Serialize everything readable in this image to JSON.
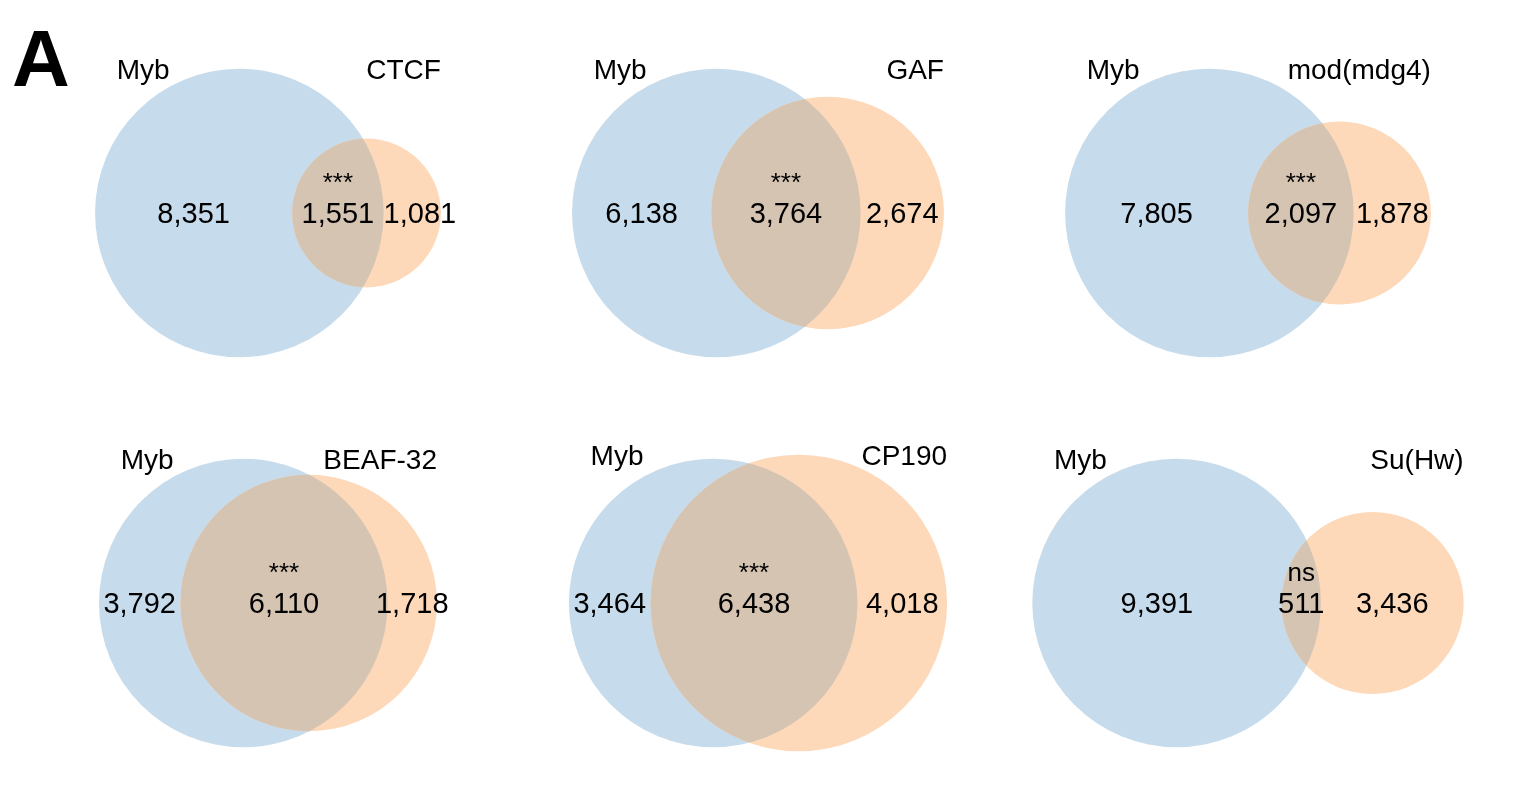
{
  "chart_data": [
    {
      "type": "other",
      "title": "A",
      "categories": [
        "Myb",
        null,
        "CTCF"
      ],
      "values": [
        8351,
        1551,
        1081
      ],
      "value_labels": [
        "8,351",
        "1,551",
        "1,081"
      ],
      "colors": [
        "#c6dbeb",
        "#d6c4b3",
        "#fdd9ba"
      ],
      "annotations": [
        "***"
      ]
    },
    {
      "type": "other",
      "categories": [
        "Myb",
        null,
        "GAF"
      ],
      "values": [
        6138,
        3764,
        2674
      ],
      "value_labels": [
        "6,138",
        "3,764",
        "2,674"
      ],
      "colors": [
        "#c6dbeb",
        "#d6c4b3",
        "#fdd9ba"
      ],
      "annotations": [
        "***"
      ]
    },
    {
      "type": "other",
      "categories": [
        "Myb",
        null,
        "mod(mdg4)"
      ],
      "values": [
        7805,
        2097,
        1878
      ],
      "value_labels": [
        "7,805",
        "2,097",
        "1,878"
      ],
      "colors": [
        "#c6dbeb",
        "#d6c4b3",
        "#fdd9ba"
      ],
      "annotations": [
        "***"
      ]
    },
    {
      "type": "other",
      "categories": [
        "Myb",
        null,
        "BEAF-32"
      ],
      "values": [
        3792,
        6110,
        1718
      ],
      "value_labels": [
        "3,792",
        "6,110",
        "1,718"
      ],
      "colors": [
        "#c6dbeb",
        "#d6c4b3",
        "#fdd9ba"
      ],
      "annotations": [
        "***"
      ]
    },
    {
      "type": "other",
      "categories": [
        "Myb",
        null,
        "CP190"
      ],
      "values": [
        3464,
        6438,
        4018
      ],
      "value_labels": [
        "3,464",
        "6,438",
        "4,018"
      ],
      "colors": [
        "#c6dbeb",
        "#d6c4b3",
        "#fdd9ba"
      ],
      "annotations": [
        "***"
      ]
    },
    {
      "type": "other",
      "categories": [
        "Myb",
        null,
        "Su(Hw)"
      ],
      "values": [
        9391,
        511,
        3436
      ],
      "value_labels": [
        "9,391",
        "511",
        "3,436"
      ],
      "colors": [
        "#c6dbeb",
        "#d6c4b3",
        "#fdd9ba"
      ],
      "annotations": [
        "ns"
      ]
    }
  ]
}
